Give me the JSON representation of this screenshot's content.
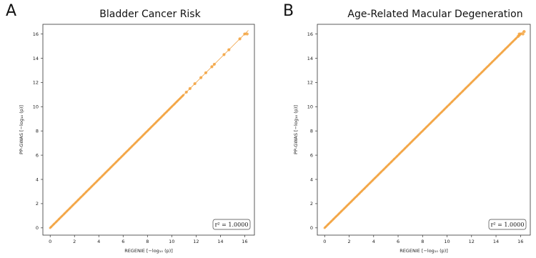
{
  "panels": [
    {
      "letter": "A",
      "title": "Bladder Cancer Risk",
      "r2_label": "r² = 1.0000"
    },
    {
      "letter": "B",
      "title": "Age-Related Macular Degeneration",
      "r2_label": "r² = 1.0000"
    }
  ],
  "colors": {
    "points": "#F5A540",
    "fit_line": "#F0A040",
    "axes": "#333333"
  },
  "chart_data": [
    {
      "type": "scatter",
      "title": "Bladder Cancer Risk",
      "xlabel": "REGENIE [−log₁₀ (p)]",
      "ylabel": "PP-GWAS [−log₁₀ (p)]",
      "xlim": [
        -0.6,
        16.8
      ],
      "ylim": [
        -0.6,
        16.8
      ],
      "xticks": [
        "0",
        "2",
        "4",
        "6",
        "8",
        "10",
        "12",
        "14",
        "16"
      ],
      "yticks": [
        "0",
        "2",
        "4",
        "6",
        "8",
        "10",
        "12",
        "14",
        "16"
      ],
      "dense_range": [
        0,
        11
      ],
      "outliers": [
        [
          11.2,
          11.2
        ],
        [
          11.5,
          11.5
        ],
        [
          11.9,
          11.9
        ],
        [
          12.4,
          12.4
        ],
        [
          12.8,
          12.8
        ],
        [
          13.3,
          13.3
        ],
        [
          13.5,
          13.5
        ],
        [
          14.3,
          14.3
        ],
        [
          14.7,
          14.7
        ],
        [
          15.6,
          15.6
        ],
        [
          16.0,
          16.0
        ],
        [
          16.2,
          16.0
        ]
      ],
      "fit_line": [
        [
          0,
          0
        ],
        [
          16.3,
          16.3
        ]
      ],
      "r2": 1.0,
      "grid": false,
      "annotation_position": "bottom-right"
    },
    {
      "type": "scatter",
      "title": "Age-Related Macular Degeneration",
      "xlabel": "REGENIE [−log₁₀ (p)]",
      "ylabel": "PP-GWAS [−log₁₀ (p)]",
      "xlim": [
        -0.6,
        16.8
      ],
      "ylim": [
        -0.6,
        16.8
      ],
      "xticks": [
        "0",
        "2",
        "4",
        "6",
        "8",
        "10",
        "12",
        "14",
        "16"
      ],
      "yticks": [
        "0",
        "2",
        "4",
        "6",
        "8",
        "10",
        "12",
        "14",
        "16"
      ],
      "dense_range": [
        0,
        15.7
      ],
      "outliers": [
        [
          15.8,
          15.8
        ],
        [
          15.9,
          15.9
        ],
        [
          16.0,
          16.0
        ],
        [
          16.2,
          16.0
        ],
        [
          16.3,
          16.2
        ],
        [
          15.9,
          16.0
        ]
      ],
      "fit_line": [
        [
          0,
          0
        ],
        [
          16.3,
          16.3
        ]
      ],
      "r2": 1.0,
      "grid": false,
      "annotation_position": "bottom-right"
    }
  ]
}
